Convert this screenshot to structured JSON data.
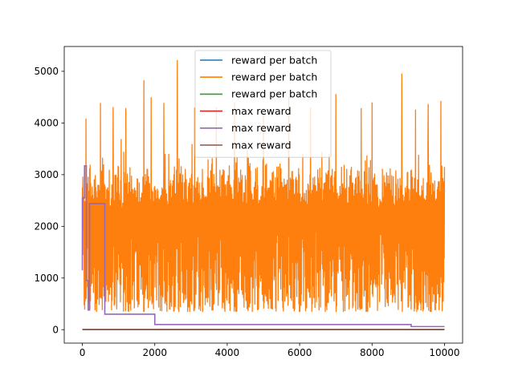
{
  "chart_data": {
    "type": "line",
    "title": "",
    "xlabel": "",
    "ylabel": "",
    "xlim": [
      -500,
      10500
    ],
    "ylim": [
      -260,
      5480
    ],
    "xticks": [
      0,
      2000,
      4000,
      6000,
      8000,
      10000
    ],
    "yticks": [
      0,
      1000,
      2000,
      3000,
      4000,
      5000
    ],
    "grid": false,
    "legend_position": "top-center",
    "series": [
      {
        "name": "reward per batch",
        "color": "#1f77b4",
        "visible_in_plot": false,
        "note": "hidden beneath orange series"
      },
      {
        "name": "reward per batch",
        "color": "#ff7f0e",
        "x_range": [
          0,
          10000
        ],
        "typical_band": [
          350,
          3400
        ],
        "extremes": [
          {
            "x": 20,
            "y": 2550
          },
          {
            "x": 100,
            "y": 4080
          },
          {
            "x": 500,
            "y": 4380
          },
          {
            "x": 850,
            "y": 4300
          },
          {
            "x": 1200,
            "y": 4280
          },
          {
            "x": 1700,
            "y": 4820
          },
          {
            "x": 1900,
            "y": 4490
          },
          {
            "x": 2250,
            "y": 4380
          },
          {
            "x": 2620,
            "y": 5210
          },
          {
            "x": 3100,
            "y": 4290
          },
          {
            "x": 3700,
            "y": 4300
          },
          {
            "x": 4200,
            "y": 4380
          },
          {
            "x": 5000,
            "y": 4200
          },
          {
            "x": 5700,
            "y": 4500
          },
          {
            "x": 6300,
            "y": 4290
          },
          {
            "x": 7000,
            "y": 4550
          },
          {
            "x": 7700,
            "y": 4280
          },
          {
            "x": 8000,
            "y": 4390
          },
          {
            "x": 8820,
            "y": 4950
          },
          {
            "x": 9200,
            "y": 4250
          },
          {
            "x": 9550,
            "y": 4360
          },
          {
            "x": 9900,
            "y": 4420
          }
        ]
      },
      {
        "name": "reward per batch",
        "color": "#2ca02c",
        "visible_in_plot": false,
        "note": "hidden beneath orange series"
      },
      {
        "name": "max reward",
        "color": "#d62728",
        "x": [
          0,
          10000
        ],
        "y": [
          0,
          0
        ]
      },
      {
        "name": "max reward",
        "color": "#9467bd",
        "x": [
          0,
          0,
          60,
          60,
          110,
          110,
          160,
          160,
          200,
          200,
          620,
          620,
          2000,
          2000,
          9080,
          9080,
          10000
        ],
        "y": [
          1150,
          2550,
          2550,
          3170,
          3170,
          950,
          950,
          380,
          380,
          2440,
          2440,
          300,
          300,
          100,
          100,
          60,
          60
        ]
      },
      {
        "name": "max reward",
        "color": "#8c564b",
        "x": [
          0,
          10000
        ],
        "y": [
          5,
          5
        ]
      }
    ]
  }
}
